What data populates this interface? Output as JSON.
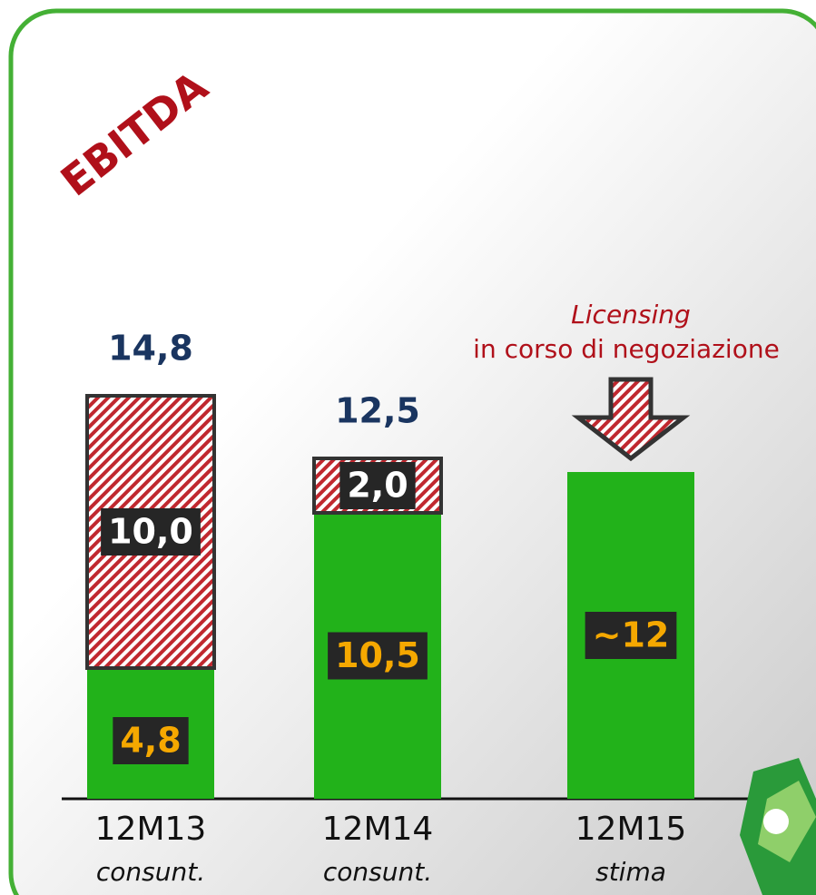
{
  "chart_data": {
    "type": "stacked-bar",
    "title": "EBITDA",
    "categories": [
      "12M13",
      "12M14",
      "12M15"
    ],
    "sublabels": [
      "consunt.",
      "consunt.",
      "stima"
    ],
    "series": [
      {
        "color": "#22b21a",
        "label_color": "#f5a800",
        "values": [
          4.8,
          10.5,
          12
        ],
        "value_labels": [
          "4,8",
          "10,5",
          "~12"
        ]
      },
      {
        "color": "#c0282f",
        "pattern": "hatch",
        "label_color": "#ffffff",
        "values": [
          10.0,
          2.0,
          null
        ],
        "value_labels": [
          "10,0",
          "2,0",
          null
        ]
      }
    ],
    "totals": [
      14.8,
      12.5,
      null
    ],
    "total_labels": [
      "14,8",
      "12,5",
      null
    ],
    "annotation": {
      "title": "Licensing",
      "text": "in corso di negoziazione",
      "category": 2
    }
  }
}
